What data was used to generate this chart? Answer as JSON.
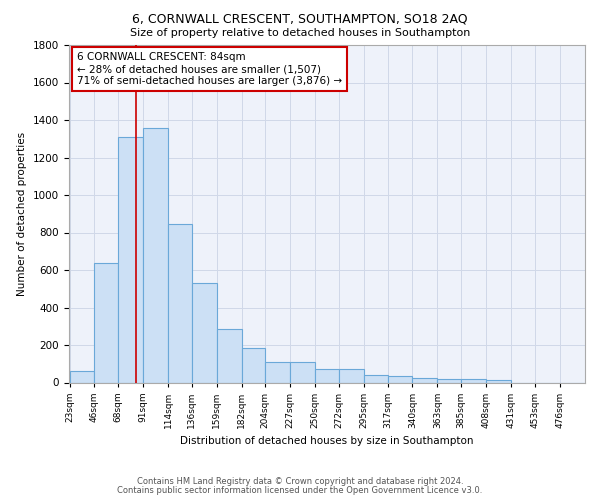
{
  "title": "6, CORNWALL CRESCENT, SOUTHAMPTON, SO18 2AQ",
  "subtitle": "Size of property relative to detached houses in Southampton",
  "xlabel": "Distribution of detached houses by size in Southampton",
  "ylabel": "Number of detached properties",
  "bar_values": [
    60,
    640,
    1310,
    1360,
    845,
    530,
    285,
    185,
    110,
    110,
    70,
    70,
    40,
    35,
    25,
    20,
    20,
    15,
    0,
    0,
    0
  ],
  "bin_edges": [
    23,
    46,
    68,
    91,
    114,
    136,
    159,
    182,
    204,
    227,
    250,
    272,
    295,
    317,
    340,
    363,
    385,
    408,
    431,
    453,
    476,
    499
  ],
  "bin_labels": [
    "23sqm",
    "46sqm",
    "68sqm",
    "91sqm",
    "114sqm",
    "136sqm",
    "159sqm",
    "182sqm",
    "204sqm",
    "227sqm",
    "250sqm",
    "272sqm",
    "295sqm",
    "317sqm",
    "340sqm",
    "363sqm",
    "385sqm",
    "408sqm",
    "431sqm",
    "453sqm",
    "476sqm"
  ],
  "bar_color": "#cce0f5",
  "bar_edge_color": "#6aa8d8",
  "grid_color": "#d0d8e8",
  "bg_color": "#eef2fa",
  "red_line_x": 84,
  "annotation_text": "6 CORNWALL CRESCENT: 84sqm\n← 28% of detached houses are smaller (1,507)\n71% of semi-detached houses are larger (3,876) →",
  "annotation_box_color": "#ffffff",
  "annotation_border_color": "#cc0000",
  "ylim": [
    0,
    1800
  ],
  "yticks": [
    0,
    200,
    400,
    600,
    800,
    1000,
    1200,
    1400,
    1600,
    1800
  ],
  "footnote1": "Contains HM Land Registry data © Crown copyright and database right 2024.",
  "footnote2": "Contains public sector information licensed under the Open Government Licence v3.0."
}
